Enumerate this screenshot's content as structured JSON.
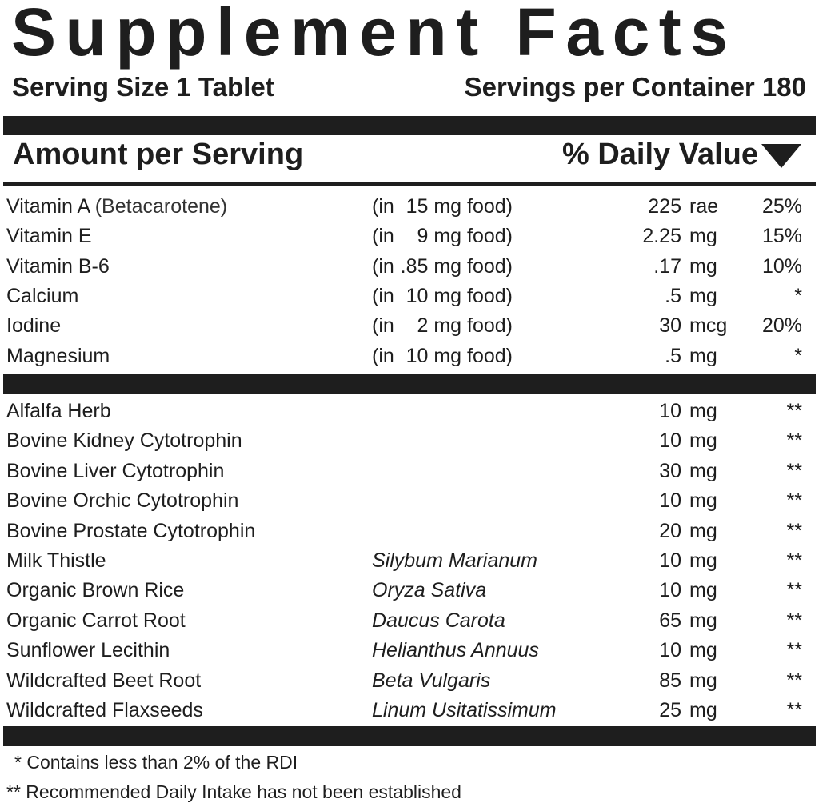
{
  "title": "Supplement Facts",
  "serving_size": "Serving Size 1 Tablet",
  "servings_per_container": "Servings per Container 180",
  "amount_header": "Amount per Serving",
  "dv_header": "% Daily Value",
  "vitamins": [
    {
      "name": "Vitamin A",
      "note": "(Betacarotene)",
      "source_prefix": "(in",
      "source": "15 mg food)",
      "amount": "225",
      "unit": "rae",
      "dv": "25%"
    },
    {
      "name": "Vitamin E",
      "source_prefix": "(in",
      "source": "9 mg food)",
      "amount": "2.25",
      "unit": "mg",
      "dv": "15%"
    },
    {
      "name": "Vitamin B-6",
      "source_prefix": "(in",
      "source": ".85 mg food)",
      "amount": ".17",
      "unit": "mg",
      "dv": "10%"
    },
    {
      "name": "Calcium",
      "source_prefix": "(in",
      "source": "10 mg food)",
      "amount": ".5",
      "unit": "mg",
      "dv": "*"
    },
    {
      "name": "Iodine",
      "source_prefix": "(in",
      "source": "2 mg food)",
      "amount": "30",
      "unit": "mcg",
      "dv": "20%"
    },
    {
      "name": "Magnesium",
      "source_prefix": "(in",
      "source": "10 mg food)",
      "amount": ".5",
      "unit": "mg",
      "dv": "*"
    }
  ],
  "ingredients": [
    {
      "name": "Alfalfa Herb",
      "amount": "10",
      "unit": "mg",
      "dv": "**"
    },
    {
      "name": "Bovine Kidney Cytotrophin",
      "amount": "10",
      "unit": "mg",
      "dv": "**"
    },
    {
      "name": "Bovine Liver Cytotrophin",
      "amount": "30",
      "unit": "mg",
      "dv": "**"
    },
    {
      "name": "Bovine Orchic Cytotrophin",
      "amount": "10",
      "unit": "mg",
      "dv": "**"
    },
    {
      "name": "Bovine Prostate Cytotrophin",
      "amount": "20",
      "unit": "mg",
      "dv": "**"
    },
    {
      "name": "Milk Thistle",
      "botanical": "Silybum Marianum",
      "amount": "10",
      "unit": "mg",
      "dv": "**"
    },
    {
      "name": "Organic Brown Rice",
      "botanical": "Oryza Sativa",
      "amount": "10",
      "unit": "mg",
      "dv": "**"
    },
    {
      "name": "Organic Carrot Root",
      "botanical": "Daucus Carota",
      "amount": "65",
      "unit": "mg",
      "dv": "**"
    },
    {
      "name": "Sunflower Lecithin",
      "botanical": "Helianthus Annuus",
      "amount": "10",
      "unit": "mg",
      "dv": "**"
    },
    {
      "name": "Wildcrafted Beet Root",
      "botanical": "Beta Vulgaris",
      "amount": "85",
      "unit": "mg",
      "dv": "**"
    },
    {
      "name": "Wildcrafted Flaxseeds",
      "botanical": "Linum Usitatissimum",
      "amount": "25",
      "unit": "mg",
      "dv": "**"
    }
  ],
  "footnotes": [
    "* Contains less than 2% of the RDI",
    "** Recommended Daily Intake has not been established"
  ]
}
